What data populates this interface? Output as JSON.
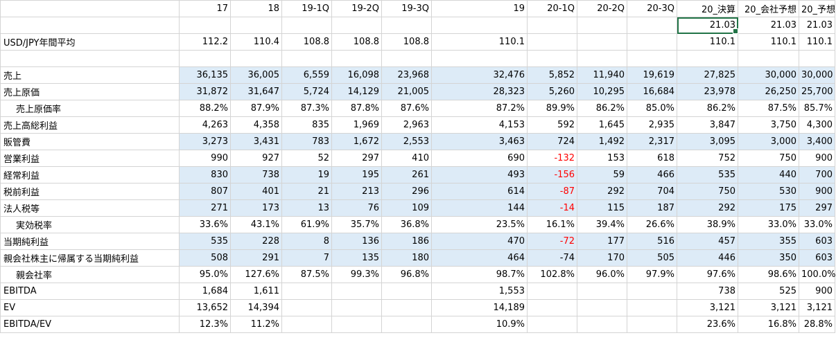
{
  "columns": [
    "17",
    "18",
    "19-1Q",
    "19-2Q",
    "19-3Q",
    "19",
    "20-1Q",
    "20-2Q",
    "20-3Q",
    "20_決算",
    "20_会社予想",
    "20_予想"
  ],
  "row_rate": [
    "",
    "",
    "",
    "",
    "",
    "",
    "",
    "",
    "",
    "21.03",
    "21.03",
    "21.03"
  ],
  "row_usd": {
    "label": "USD/JPY年間平均",
    "values": [
      "112.2",
      "110.4",
      "108.8",
      "108.8",
      "108.8",
      "110.1",
      "",
      "",
      "",
      "110.1",
      "110.1",
      "110.1"
    ]
  },
  "rows": [
    {
      "label": "売上",
      "indent": false,
      "band": true,
      "values": [
        "36,135",
        "36,005",
        "6,559",
        "16,098",
        "23,968",
        "32,476",
        "5,852",
        "11,940",
        "19,619",
        "27,825",
        "30,000",
        "30,000"
      ]
    },
    {
      "label": "売上原価",
      "indent": false,
      "band": true,
      "values": [
        "31,872",
        "31,647",
        "5,724",
        "14,129",
        "21,005",
        "28,323",
        "5,260",
        "10,295",
        "16,684",
        "23,978",
        "26,250",
        "25,700"
      ]
    },
    {
      "label": "売上原価率",
      "indent": true,
      "band": false,
      "values": [
        "88.2%",
        "87.9%",
        "87.3%",
        "87.8%",
        "87.6%",
        "87.2%",
        "89.9%",
        "86.2%",
        "85.0%",
        "86.2%",
        "87.5%",
        "85.7%"
      ]
    },
    {
      "label": "売上高総利益",
      "indent": false,
      "band": false,
      "values": [
        "4,263",
        "4,358",
        "835",
        "1,969",
        "2,963",
        "4,153",
        "592",
        "1,645",
        "2,935",
        "3,847",
        "3,750",
        "4,300"
      ]
    },
    {
      "label": "販管費",
      "indent": false,
      "band": true,
      "values": [
        "3,273",
        "3,431",
        "783",
        "1,672",
        "2,553",
        "3,463",
        "724",
        "1,492",
        "2,317",
        "3,095",
        "3,000",
        "3,400"
      ]
    },
    {
      "label": "営業利益",
      "indent": false,
      "band": false,
      "values": [
        "990",
        "927",
        "52",
        "297",
        "410",
        "690",
        "-132",
        "153",
        "618",
        "752",
        "750",
        "900"
      ]
    },
    {
      "label": "経常利益",
      "indent": false,
      "band": true,
      "values": [
        "830",
        "738",
        "19",
        "195",
        "261",
        "493",
        "-156",
        "59",
        "466",
        "535",
        "440",
        "700"
      ]
    },
    {
      "label": "税前利益",
      "indent": false,
      "band": true,
      "values": [
        "807",
        "401",
        "21",
        "213",
        "296",
        "614",
        "-87",
        "292",
        "704",
        "750",
        "530",
        "900"
      ]
    },
    {
      "label": "法人税等",
      "indent": false,
      "band": true,
      "values": [
        "271",
        "173",
        "13",
        "76",
        "109",
        "144",
        "-14",
        "115",
        "187",
        "292",
        "175",
        "297"
      ]
    },
    {
      "label": "実効税率",
      "indent": true,
      "band": false,
      "values": [
        "33.6%",
        "43.1%",
        "61.9%",
        "35.7%",
        "36.8%",
        "23.5%",
        "16.1%",
        "39.4%",
        "26.6%",
        "38.9%",
        "33.0%",
        "33.0%"
      ]
    },
    {
      "label": "当期純利益",
      "indent": false,
      "band": true,
      "values": [
        "535",
        "228",
        "8",
        "136",
        "186",
        "470",
        "-72",
        "177",
        "516",
        "457",
        "355",
        "603"
      ]
    },
    {
      "label": "親会社株主に帰属する当期純利益",
      "indent": false,
      "band": true,
      "values": [
        "508",
        "291",
        "7",
        "135",
        "180",
        "464",
        "-74",
        "170",
        "505",
        "446",
        "350",
        "603"
      ]
    },
    {
      "label": "親会社率",
      "indent": true,
      "band": false,
      "values": [
        "95.0%",
        "127.6%",
        "87.5%",
        "99.3%",
        "96.8%",
        "98.7%",
        "102.8%",
        "96.0%",
        "97.9%",
        "97.6%",
        "98.6%",
        "100.0%"
      ]
    },
    {
      "label": "EBITDA",
      "indent": false,
      "band": false,
      "values": [
        "1,684",
        "1,611",
        "",
        "",
        "",
        "1,553",
        "",
        "",
        "",
        "738",
        "525",
        "900"
      ]
    },
    {
      "label": "EV",
      "indent": false,
      "band": false,
      "values": [
        "13,652",
        "14,394",
        "",
        "",
        "",
        "14,189",
        "",
        "",
        "",
        "3,121",
        "3,121",
        "3,121"
      ]
    },
    {
      "label": "EBITDA/EV",
      "indent": false,
      "band": false,
      "values": [
        "12.3%",
        "11.2%",
        "",
        "",
        "",
        "10.9%",
        "",
        "",
        "",
        "23.6%",
        "16.8%",
        "28.8%"
      ]
    }
  ],
  "negative_rows_red": [
    "営業利益",
    "経常利益",
    "税前利益",
    "法人税等",
    "当期純利益"
  ],
  "colors": {
    "band": "#ddebf7",
    "negative": "#ff0000",
    "selection": "#217346",
    "grid": "#d4d4d4"
  }
}
